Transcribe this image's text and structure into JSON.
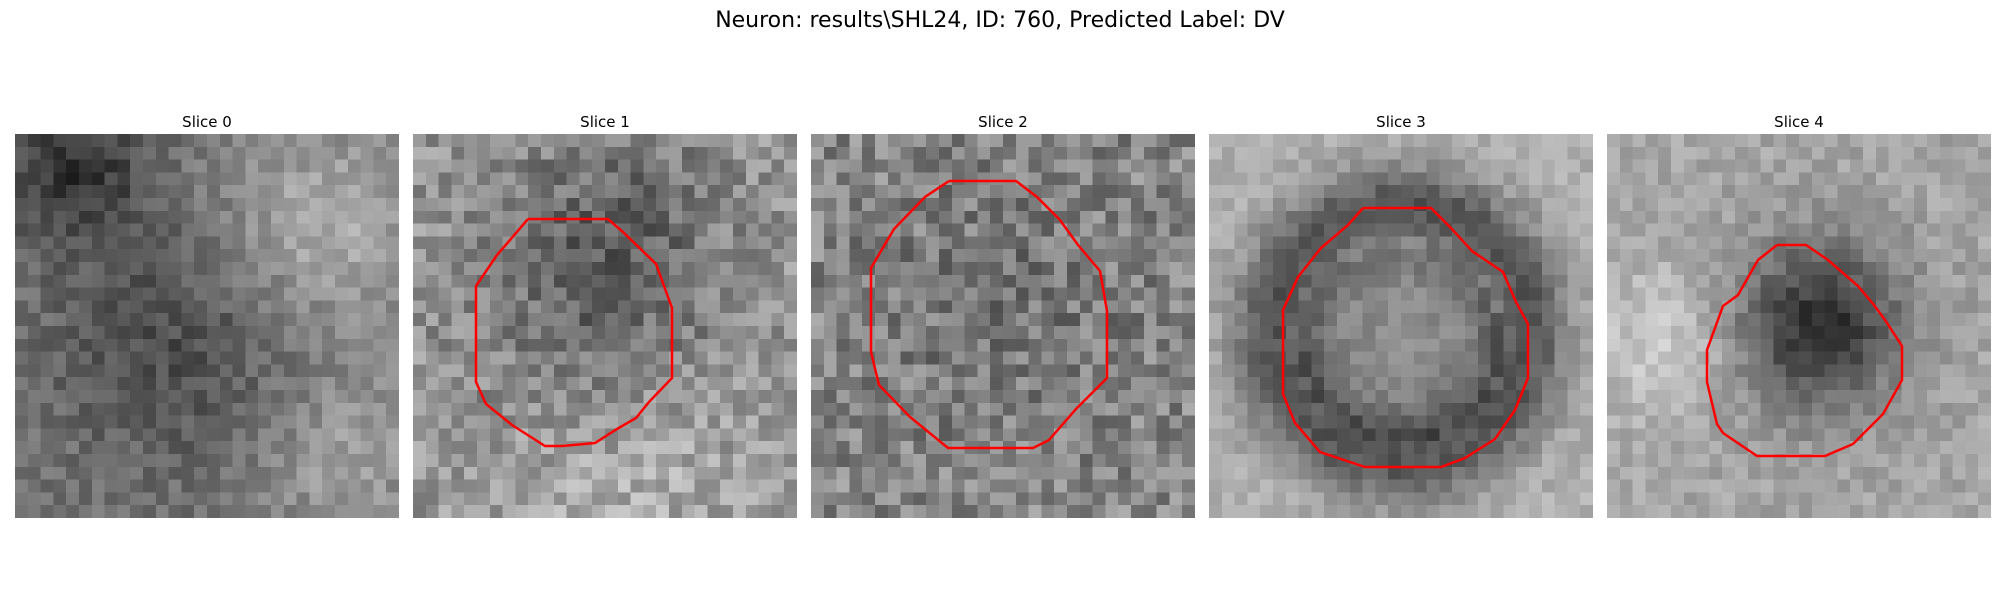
{
  "figure": {
    "title": "Neuron: results\\SHL24, ID: 760, Predicted Label: DV"
  },
  "panels": [
    {
      "title": "Slice 0",
      "has_contour": false
    },
    {
      "title": "Slice 1",
      "has_contour": true
    },
    {
      "title": "Slice 2",
      "has_contour": true
    },
    {
      "title": "Slice 3",
      "has_contour": true
    },
    {
      "title": "Slice 4",
      "has_contour": true
    }
  ],
  "colors": {
    "contour": "#ff0000",
    "image_colormap": "grayscale"
  }
}
